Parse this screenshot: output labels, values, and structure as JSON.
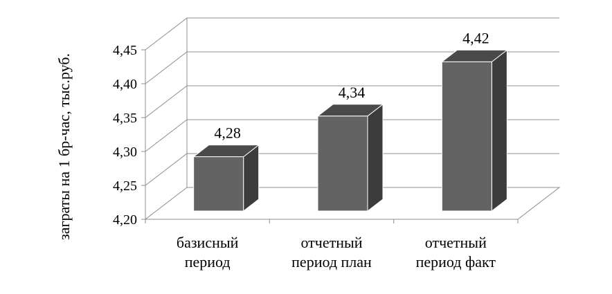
{
  "chart_data": {
    "type": "bar",
    "title": "",
    "xlabel": "",
    "ylabel": "заграты на 1 бр-час, тыс.руб.",
    "categories": [
      [
        "базисный",
        "период"
      ],
      [
        "отчетный",
        "период план"
      ],
      [
        "отчетный",
        "период факт"
      ]
    ],
    "values": [
      4.28,
      4.34,
      4.42
    ],
    "value_labels": [
      "4,28",
      "4,34",
      "4,42"
    ],
    "ylim": [
      4.2,
      4.45
    ],
    "yticks": [
      4.2,
      4.25,
      4.3,
      4.35,
      4.4,
      4.45
    ],
    "ytick_labels": [
      "4,20",
      "4,25",
      "4,30",
      "4,35",
      "4,40",
      "4,45"
    ],
    "grid": true,
    "legend": "none",
    "style": "3d-column",
    "colors": {
      "bar_front": "#636363",
      "bar_side": "#3c3c3c",
      "bar_top": "#4a4a4a",
      "grid": "#8c8c8c",
      "floor": "#ffffff"
    }
  }
}
